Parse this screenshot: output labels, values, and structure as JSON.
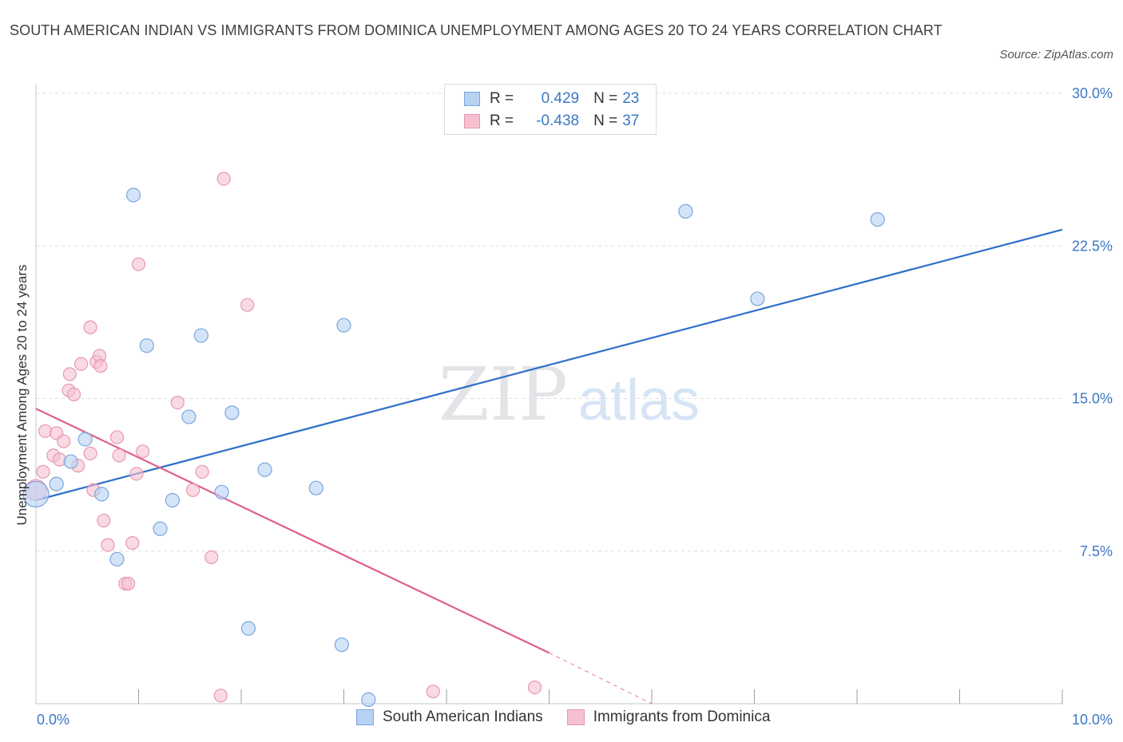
{
  "title": "SOUTH AMERICAN INDIAN VS IMMIGRANTS FROM DOMINICA UNEMPLOYMENT AMONG AGES 20 TO 24 YEARS CORRELATION CHART",
  "source": "Source: ZipAtlas.com",
  "watermark": {
    "zip": "ZIP",
    "atlas": "atlas"
  },
  "legend": {
    "series1": {
      "r_label": "R =",
      "r_value": "0.429",
      "n_label": "N =",
      "n_value": "23"
    },
    "series2": {
      "r_label": "R =",
      "r_value": "-0.438",
      "n_label": "N =",
      "n_value": "37"
    }
  },
  "colors": {
    "blue_fill": "#b7d2f3",
    "blue_stroke": "#7aa6dd",
    "blue_line": "#2d70c9",
    "pink_fill": "#f5c1d0",
    "pink_stroke": "#e897b0",
    "pink_line": "#e0608a",
    "tick_label": "#3a78c4",
    "grid": "#d9dde3"
  },
  "chart_data": {
    "type": "scatter",
    "title": "SOUTH AMERICAN INDIAN VS IMMIGRANTS FROM DOMINICA UNEMPLOYMENT AMONG AGES 20 TO 24 YEARS CORRELATION CHART",
    "xlabel": "",
    "ylabel": "Unemployment Among Ages 20 to 24 years",
    "xlim": [
      0,
      10
    ],
    "ylim": [
      0,
      30
    ],
    "x_tick_labels": [
      "0.0%",
      "10.0%"
    ],
    "y_ticks": [
      7.5,
      15.0,
      22.5,
      30.0
    ],
    "y_tick_labels": [
      "7.5%",
      "15.0%",
      "22.5%",
      "30.0%"
    ],
    "grid": true,
    "legend_position": "top-center",
    "series": [
      {
        "name": "South American Indians",
        "r": 0.429,
        "n": 23,
        "points": [
          [
            0.0,
            10.3
          ],
          [
            0.2,
            10.8
          ],
          [
            0.34,
            11.9
          ],
          [
            0.48,
            13.0
          ],
          [
            0.64,
            10.3
          ],
          [
            0.79,
            7.1
          ],
          [
            0.95,
            25.0
          ],
          [
            1.08,
            17.6
          ],
          [
            1.21,
            8.6
          ],
          [
            1.33,
            10.0
          ],
          [
            1.49,
            14.1
          ],
          [
            1.61,
            18.1
          ],
          [
            1.81,
            10.4
          ],
          [
            1.91,
            14.3
          ],
          [
            2.07,
            3.7
          ],
          [
            2.23,
            11.5
          ],
          [
            2.73,
            10.6
          ],
          [
            2.98,
            2.9
          ],
          [
            3.0,
            18.6
          ],
          [
            3.24,
            0.2
          ],
          [
            6.33,
            24.2
          ],
          [
            7.03,
            19.9
          ],
          [
            8.2,
            23.8
          ]
        ],
        "trend": {
          "x0": 0.0,
          "y0": 10.0,
          "x1": 10.0,
          "y1": 23.3
        }
      },
      {
        "name": "Immigrants from Dominica",
        "r": -0.438,
        "n": 37,
        "points": [
          [
            0.0,
            10.5
          ],
          [
            0.07,
            11.4
          ],
          [
            0.09,
            13.4
          ],
          [
            0.2,
            13.3
          ],
          [
            0.17,
            12.2
          ],
          [
            0.23,
            12.0
          ],
          [
            0.27,
            12.9
          ],
          [
            0.32,
            15.4
          ],
          [
            0.33,
            16.2
          ],
          [
            0.37,
            15.2
          ],
          [
            0.41,
            11.7
          ],
          [
            0.44,
            16.7
          ],
          [
            0.53,
            12.3
          ],
          [
            0.53,
            18.5
          ],
          [
            0.56,
            10.5
          ],
          [
            0.59,
            16.8
          ],
          [
            0.62,
            17.1
          ],
          [
            0.63,
            16.6
          ],
          [
            0.66,
            9.0
          ],
          [
            0.7,
            7.8
          ],
          [
            0.79,
            13.1
          ],
          [
            0.81,
            12.2
          ],
          [
            0.87,
            5.9
          ],
          [
            0.9,
            5.9
          ],
          [
            0.94,
            7.9
          ],
          [
            0.98,
            11.3
          ],
          [
            1.0,
            21.6
          ],
          [
            1.04,
            12.4
          ],
          [
            1.38,
            14.8
          ],
          [
            1.53,
            10.5
          ],
          [
            1.62,
            11.4
          ],
          [
            1.71,
            7.2
          ],
          [
            1.8,
            0.4
          ],
          [
            1.83,
            25.8
          ],
          [
            2.06,
            19.6
          ],
          [
            3.87,
            0.6
          ],
          [
            4.86,
            0.8
          ]
        ],
        "trend": {
          "x0": 0.0,
          "y0": 14.5,
          "x1": 5.0,
          "y1": 2.5,
          "x_dash_end": 6.0,
          "y_dash_end": 0.0
        }
      }
    ]
  },
  "bottom_legend": [
    "South American Indians",
    "Immigrants from Dominica"
  ]
}
